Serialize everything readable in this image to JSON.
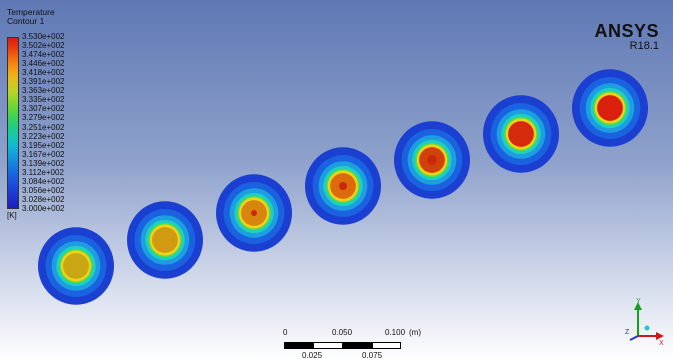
{
  "legend": {
    "title": "Temperature",
    "subtitle": "Contour 1",
    "unit": "[K]",
    "labels": [
      "3.530e+002",
      "3.502e+002",
      "3.474e+002",
      "3.446e+002",
      "3.418e+002",
      "3.391e+002",
      "3.363e+002",
      "3.335e+002",
      "3.307e+002",
      "3.279e+002",
      "3.251e+002",
      "3.223e+002",
      "3.195e+002",
      "3.167e+002",
      "3.139e+002",
      "3.112e+002",
      "3.084e+002",
      "3.056e+002",
      "3.028e+002",
      "3.000e+002"
    ],
    "colors": [
      "#d81b0e",
      "#e8380d",
      "#f06212",
      "#f58a16",
      "#f2ac17",
      "#d8c41e",
      "#b8d426",
      "#8ed62e",
      "#5fd63a",
      "#35d35a",
      "#1ece86",
      "#14c8b0",
      "#12bad0",
      "#139fdc",
      "#1685e0",
      "#186be0",
      "#1a55dc",
      "#1b41d4",
      "#1b2fca",
      "#1b1ebc"
    ]
  },
  "brand": {
    "name": "ANSYS",
    "version": "R18.1"
  },
  "scale": {
    "top_labels": [
      "0",
      "0.050",
      "0.100",
      "(m)"
    ],
    "bottom_labels": [
      "0.025",
      "0.075"
    ]
  },
  "triad": {
    "y_label": "Y",
    "x_label": "X",
    "z_label": "Z"
  },
  "disks": [
    {
      "core_color": "#c9a614"
    },
    {
      "core_color": "#d09a12"
    },
    {
      "core_color": "#d8850f"
    },
    {
      "core_color": "#dd6b0e"
    },
    {
      "core_color": "#d2410c"
    },
    {
      "core_color": "#d62a0c"
    },
    {
      "core_color": "#d8200c"
    }
  ]
}
